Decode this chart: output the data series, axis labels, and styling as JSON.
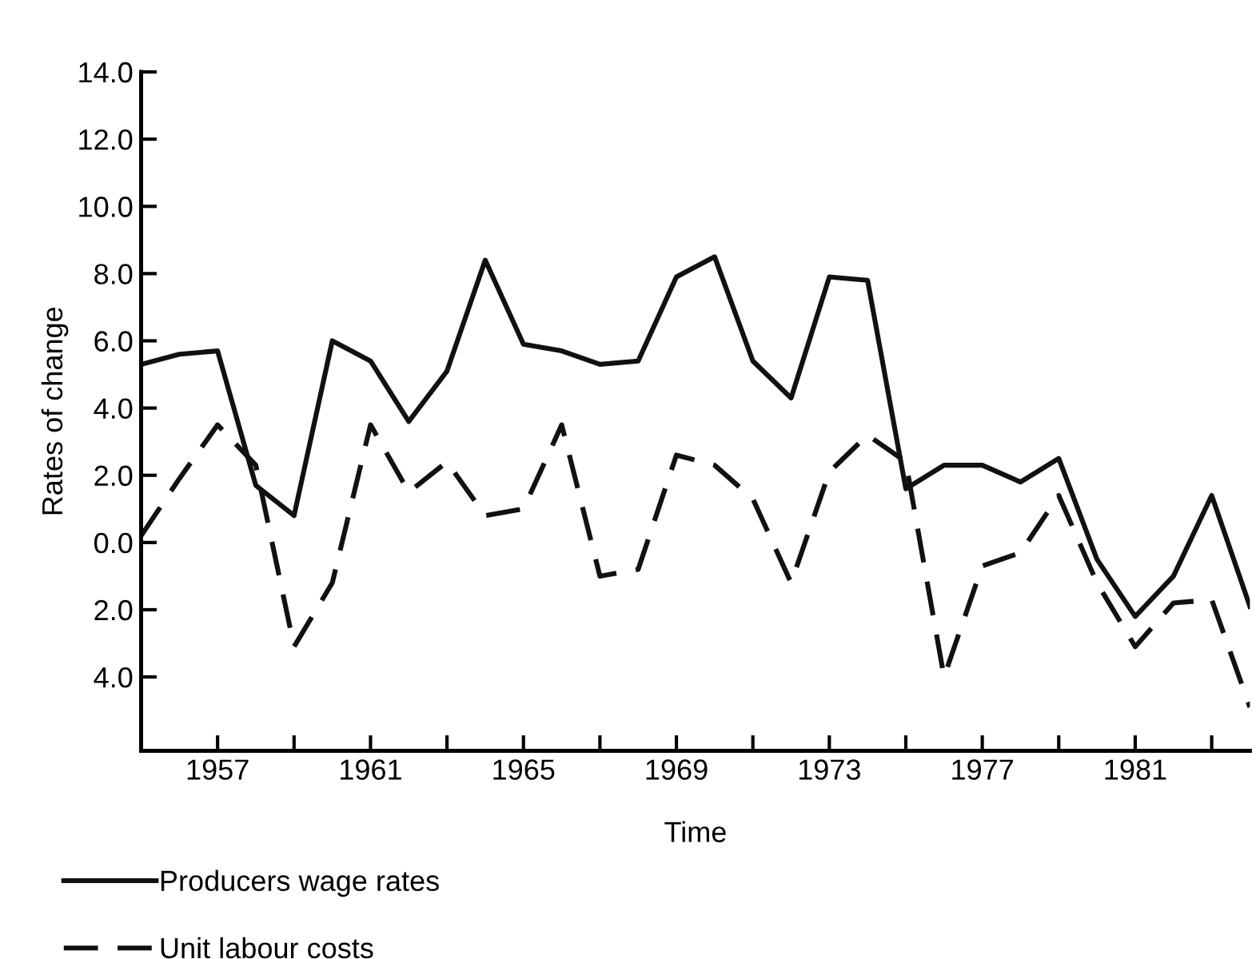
{
  "chart_data": {
    "type": "line",
    "xlabel": "Time",
    "ylabel": "Rates of change",
    "x": [
      1955,
      1956,
      1957,
      1958,
      1959,
      1960,
      1961,
      1962,
      1963,
      1964,
      1965,
      1966,
      1967,
      1968,
      1969,
      1970,
      1971,
      1972,
      1973,
      1974,
      1975,
      1976,
      1977,
      1978,
      1979,
      1980,
      1981,
      1982,
      1983,
      1984
    ],
    "series": [
      {
        "name": "Producers wage rates",
        "color": "#111111",
        "line_style": "solid",
        "values": [
          5.3,
          5.6,
          5.7,
          1.7,
          0.8,
          6.0,
          5.4,
          3.6,
          5.1,
          8.4,
          5.9,
          5.7,
          5.3,
          5.4,
          7.9,
          8.5,
          5.4,
          4.3,
          7.9,
          7.8,
          1.6,
          2.3,
          2.3,
          1.8,
          2.5,
          -0.5,
          -2.2,
          -1.0,
          1.4,
          -1.9
        ]
      },
      {
        "name": "Unit labour costs",
        "color": "#111111",
        "line_style": "dashed",
        "values": [
          0.2,
          1.9,
          3.5,
          2.3,
          -3.1,
          -1.2,
          3.5,
          1.5,
          2.4,
          0.8,
          1.0,
          3.5,
          -1.0,
          -0.8,
          2.6,
          2.3,
          1.3,
          -1.2,
          2.1,
          3.2,
          2.4,
          -4.0,
          -0.7,
          -0.3,
          1.4,
          -1.2,
          -3.1,
          -1.8,
          -1.7,
          -4.9
        ]
      }
    ],
    "xlim": [
      1955,
      1984
    ],
    "ylim": [
      -6.2,
      14.0
    ],
    "xticks": [
      {
        "value": 1957,
        "label": "1957"
      },
      {
        "value": 1959,
        "label": null
      },
      {
        "value": 1961,
        "label": "1961"
      },
      {
        "value": 1963,
        "label": null
      },
      {
        "value": 1965,
        "label": "1965"
      },
      {
        "value": 1967,
        "label": null
      },
      {
        "value": 1969,
        "label": "1969"
      },
      {
        "value": 1971,
        "label": null
      },
      {
        "value": 1973,
        "label": "1973"
      },
      {
        "value": 1975,
        "label": null
      },
      {
        "value": 1977,
        "label": "1977"
      },
      {
        "value": 1979,
        "label": null
      },
      {
        "value": 1981,
        "label": "1981"
      },
      {
        "value": 1983,
        "label": null
      }
    ],
    "yticks": [
      {
        "value": -4,
        "label": "4.0"
      },
      {
        "value": -2,
        "label": "2.0"
      },
      {
        "value": 0,
        "label": "0.0"
      },
      {
        "value": 2,
        "label": "2.0"
      },
      {
        "value": 4,
        "label": "4.0"
      },
      {
        "value": 6,
        "label": "6.0"
      },
      {
        "value": 8,
        "label": "8.0"
      },
      {
        "value": 10,
        "label": "10.0"
      },
      {
        "value": 12,
        "label": "12.0"
      },
      {
        "value": 14,
        "label": "14.0"
      }
    ],
    "grid": false,
    "legend": "bottom left",
    "marker": "none"
  }
}
